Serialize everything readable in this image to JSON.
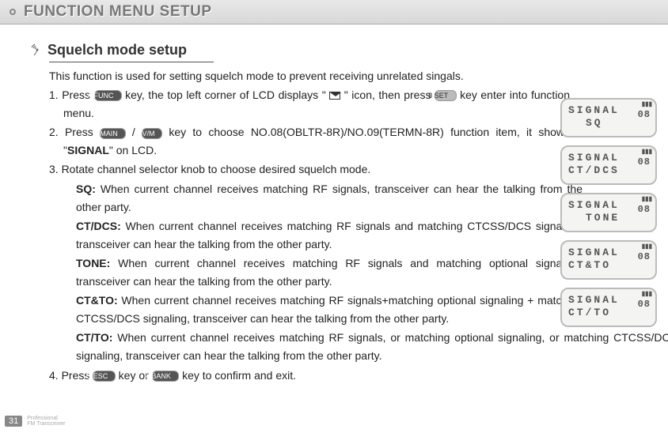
{
  "header": {
    "title": "FUNCTION MENU SETUP"
  },
  "section": {
    "title": "Squelch mode setup"
  },
  "intro": "This function is used for setting squelch mode to prevent receiving unrelated singals.",
  "step1": {
    "a": "1. Press ",
    "b": " key, the top left corner of LCD displays \" ",
    "c": " \" icon, then press ",
    "d": " key enter into function menu."
  },
  "step2": {
    "a": "2. Press ",
    "b": " / ",
    "c": "  key to choose NO.08(OBLTR-8R)/NO.09(TERMN-8R) function item, it shows \"",
    "sig": "SIGNAL",
    "d": "\" on LCD."
  },
  "step3": "3. Rotate channel selector knob to choose desired squelch mode.",
  "sq": {
    "label": "SQ:",
    "text": " When current channel receives matching RF signals, transceiver can hear the talking from the other party."
  },
  "ctdcs": {
    "label": "CT/DCS:",
    "text": " When current channel receives matching RF signals and matching CTCSS/DCS signaling, transceiver can hear the talking from the other party."
  },
  "tone": {
    "label": "TONE:",
    "text": " When current channel receives matching RF signals and matching optional signaling, transceiver can hear the talking from the other party."
  },
  "ctto": {
    "label": "CT&TO:",
    "text": " When current channel receives matching RF signals+matching optional signaling + matching CTCSS/DCS signaling, transceiver can hear the talking from the other party."
  },
  "ctto2": {
    "label": "CT/TO:",
    "text": " When current channel receives matching RF signals, or matching optional signaling, or matching CTCSS/DCS signaling, transceiver can hear the talking from the other party."
  },
  "step4": {
    "a": "4. Press ",
    "b": " key or ",
    "c": " key to confirm and exit."
  },
  "keys": {
    "func": "A FUNC",
    "main": "B MAIN",
    "vm": "C V/M",
    "esc": "D ESC",
    "bank": "# BANK",
    "bset": "8 SET"
  },
  "lcds": [
    {
      "l1": "SIGNAL",
      "l2": "SQ",
      "centered": true,
      "num": "08"
    },
    {
      "l1": "SIGNAL",
      "l2": "CT/DCS",
      "centered": false,
      "num": "08"
    },
    {
      "l1": "SIGNAL",
      "l2": "TONE",
      "centered": true,
      "num": "08"
    },
    {
      "l1": "SIGNAL",
      "l2": "CT&TO",
      "centered": false,
      "num": "08"
    },
    {
      "l1": "SIGNAL",
      "l2": "CT/TO",
      "centered": false,
      "num": "08"
    }
  ],
  "footer": {
    "page": "31",
    "l1": "Professional",
    "l2": "FM Transceiver"
  },
  "bat": "▮▮▮"
}
